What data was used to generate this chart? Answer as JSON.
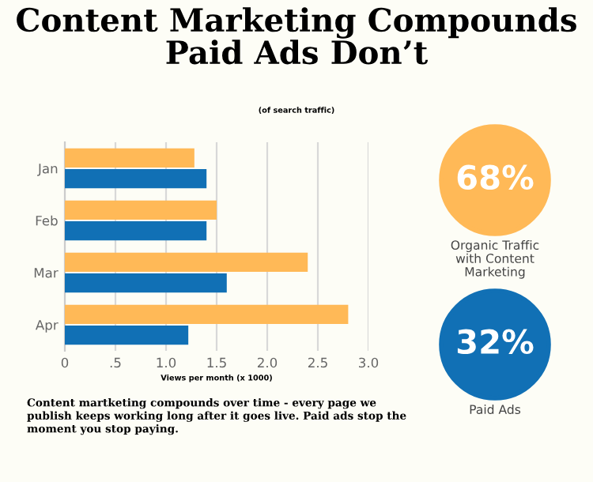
{
  "chart_data": {
    "type": "bar",
    "orientation": "horizontal",
    "title": "Content Marketing Compounds\nPaid Ads Don’t",
    "subtitle": "(of search traffic)",
    "xlabel": "Views per month (x 1000)",
    "categories": [
      "Jan",
      "Feb",
      "Mar",
      "Apr"
    ],
    "series": [
      {
        "name": "Organic Traffic\nwith Content\nMarketing",
        "color": "#ffb957",
        "values": [
          1.28,
          1.5,
          2.4,
          2.8
        ]
      },
      {
        "name": "Paid Ads",
        "color": "#1170b5",
        "values": [
          1.4,
          1.4,
          1.6,
          1.22
        ]
      }
    ],
    "xlim": [
      0,
      3
    ],
    "xticks": [
      0,
      {
        "value": 0.5,
        "label": ".5"
      },
      {
        "value": 1,
        "label": "1.0"
      },
      {
        "value": 1.5,
        "label": "1.5"
      },
      {
        "value": 2,
        "label": "2.0"
      },
      {
        "value": 2.5,
        "label": "2.5"
      },
      {
        "value": 3,
        "label": "3.0"
      }
    ],
    "grid": "x",
    "legend": "right",
    "annotations": [
      "68%",
      "32%",
      "Content martketing compounds over time - every page we\npublish keeps working long after it goes live. Paid ads stop the\nmoment you stop paying."
    ]
  }
}
